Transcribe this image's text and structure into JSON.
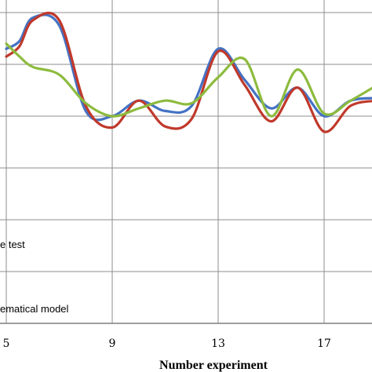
{
  "chart_data": {
    "type": "line",
    "xlabel": "Number experiment",
    "ylabel": "",
    "title": "",
    "xticks": [
      5,
      9,
      13,
      17
    ],
    "xlim": [
      5,
      19
    ],
    "ylim": [
      0,
      6
    ],
    "grid": true,
    "legend": {
      "placement": "bottom-left",
      "entries": [
        "e test",
        "ematical model"
      ]
    },
    "series": [
      {
        "color": "#4472c4",
        "x": [
          5,
          5.5,
          6,
          7,
          8,
          9,
          10,
          11,
          12,
          13,
          14,
          15,
          16,
          17,
          18,
          19
        ],
        "y": [
          5.3,
          5.45,
          5.9,
          5.75,
          4.1,
          4.0,
          4.3,
          4.1,
          4.2,
          5.3,
          4.7,
          4.15,
          4.55,
          4.0,
          4.3,
          4.35
        ]
      },
      {
        "color": "#c0392b",
        "x": [
          5,
          5.5,
          6,
          7,
          8,
          9,
          10,
          11,
          12,
          13,
          14,
          15,
          16,
          17,
          18,
          19
        ],
        "y": [
          5.15,
          5.35,
          5.85,
          5.85,
          4.2,
          3.78,
          4.3,
          3.8,
          3.95,
          5.25,
          4.6,
          3.9,
          4.55,
          3.7,
          4.2,
          4.3
        ]
      },
      {
        "color": "#8dbb3e",
        "x": [
          5,
          5.5,
          6,
          7,
          8,
          9,
          10,
          11,
          12,
          13,
          14,
          15,
          16,
          17,
          18,
          19
        ],
        "y": [
          5.4,
          5.15,
          4.95,
          4.8,
          4.25,
          4.0,
          4.15,
          4.3,
          4.25,
          4.75,
          5.1,
          4.0,
          4.9,
          4.05,
          4.3,
          4.6
        ]
      }
    ]
  }
}
